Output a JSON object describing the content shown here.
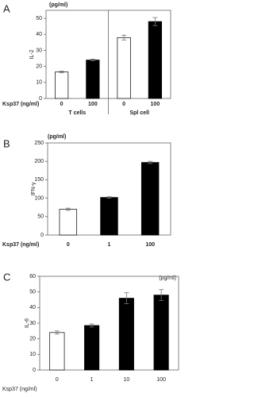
{
  "chart_data": [
    {
      "type": "bar",
      "panel": "A",
      "unit_label": "(pg/ml)",
      "y_label": "IL-2",
      "x_label": "Ksp37 (ng/ml)",
      "categories": [
        "0",
        "100",
        "0",
        "100"
      ],
      "groups": [
        "T cells",
        "Spl cell"
      ],
      "values": [
        16.5,
        24,
        38,
        48
      ],
      "errors": [
        0.5,
        0.5,
        1.5,
        2.5
      ],
      "colors": [
        "#ffffff",
        "#000000",
        "#ffffff",
        "#000000"
      ],
      "ylim": [
        0,
        55
      ],
      "yticks": [
        0,
        10,
        20,
        30,
        40,
        50
      ],
      "grid": false
    },
    {
      "type": "bar",
      "panel": "B",
      "unit_label": "(pg/ml)",
      "y_label": "IFN-γ",
      "x_label": "Ksp37 (ng/ml)",
      "categories": [
        "0",
        "1",
        "100"
      ],
      "values": [
        70,
        102,
        197
      ],
      "errors": [
        3,
        2,
        3
      ],
      "colors": [
        "#ffffff",
        "#000000",
        "#000000"
      ],
      "ylim": [
        0,
        250
      ],
      "yticks": [
        0,
        50,
        100,
        150,
        200,
        250
      ],
      "grid": false
    },
    {
      "type": "bar",
      "panel": "C",
      "unit_label": "(pg/ml)",
      "y_label": "IL-6",
      "x_label": "Ksp37 (ng/ml)",
      "categories": [
        "0",
        "1",
        "10",
        "100"
      ],
      "values": [
        24,
        28.5,
        46,
        48
      ],
      "errors": [
        1,
        1,
        3.5,
        3.5
      ],
      "colors": [
        "#ffffff",
        "#000000",
        "#000000",
        "#000000"
      ],
      "ylim": [
        0,
        60
      ],
      "yticks": [
        0,
        10,
        20,
        30,
        40,
        50,
        60
      ],
      "grid": false
    }
  ]
}
